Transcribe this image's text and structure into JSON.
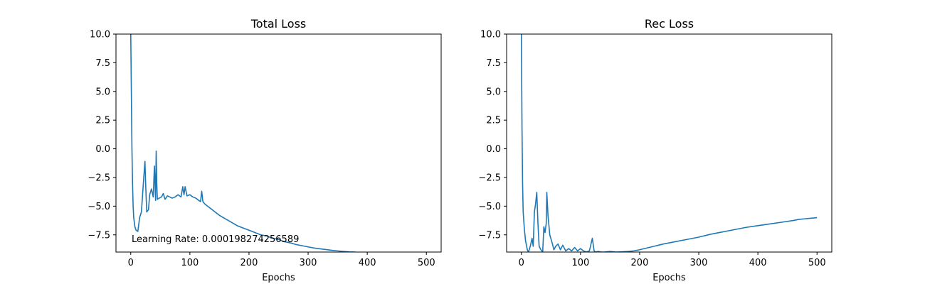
{
  "chart_data": [
    {
      "type": "line",
      "title": "Total Loss",
      "xlabel": "Epochs",
      "ylabel": "",
      "xlim": [
        -25,
        525
      ],
      "ylim": [
        -9.0,
        10.0
      ],
      "xticks": [
        0,
        100,
        200,
        300,
        400,
        500
      ],
      "xtick_labels": [
        "0",
        "100",
        "200",
        "300",
        "400",
        "500"
      ],
      "yticks": [
        -7.5,
        -5.0,
        -2.5,
        0.0,
        2.5,
        5.0,
        7.5,
        10.0
      ],
      "ytick_labels": [
        "−7.5",
        "−5.0",
        "−2.5",
        "0.0",
        "2.5",
        "5.0",
        "7.5",
        "10.0"
      ],
      "grid": false,
      "color": "#1f77b4",
      "annotation": "Learning Rate: 0.000198274256589",
      "series": [
        {
          "x": [
            0,
            1,
            2,
            3,
            4,
            5,
            7,
            9,
            12,
            15,
            18,
            20,
            22,
            24,
            25,
            27,
            30,
            32,
            35,
            38,
            40,
            42,
            43,
            44,
            45,
            48,
            52,
            55,
            58,
            62,
            66,
            70,
            75,
            80,
            85,
            88,
            90,
            92,
            95,
            100,
            105,
            110,
            115,
            118,
            120,
            122,
            125,
            130,
            140,
            150,
            160,
            170,
            180,
            190,
            200,
            210,
            220,
            230,
            240,
            250,
            260,
            270,
            280,
            290,
            300,
            310,
            320,
            330,
            340,
            350,
            360,
            370,
            380
          ],
          "y": [
            10.0,
            5.0,
            0.0,
            -3.0,
            -5.0,
            -6.0,
            -6.8,
            -7.1,
            -7.2,
            -6.0,
            -5.5,
            -4.0,
            -2.5,
            -1.1,
            -2.8,
            -5.5,
            -5.3,
            -4.0,
            -3.5,
            -4.2,
            -1.5,
            -4.5,
            -0.2,
            -3.0,
            -4.4,
            -4.3,
            -4.2,
            -3.9,
            -4.4,
            -4.1,
            -4.2,
            -4.3,
            -4.2,
            -4.0,
            -4.2,
            -3.3,
            -4.0,
            -3.3,
            -4.1,
            -4.0,
            -4.2,
            -4.3,
            -4.5,
            -4.6,
            -3.7,
            -4.6,
            -4.8,
            -5.0,
            -5.4,
            -5.8,
            -6.1,
            -6.4,
            -6.7,
            -6.9,
            -7.1,
            -7.3,
            -7.5,
            -7.6,
            -7.8,
            -7.9,
            -8.1,
            -8.2,
            -8.35,
            -8.45,
            -8.55,
            -8.65,
            -8.72,
            -8.78,
            -8.85,
            -8.9,
            -8.95,
            -8.99,
            -9.0
          ]
        }
      ]
    },
    {
      "type": "line",
      "title": "Rec Loss",
      "xlabel": "Epochs",
      "ylabel": "",
      "xlim": [
        -25,
        525
      ],
      "ylim": [
        -9.0,
        10.0
      ],
      "xticks": [
        0,
        100,
        200,
        300,
        400,
        500
      ],
      "xtick_labels": [
        "0",
        "100",
        "200",
        "300",
        "400",
        "500"
      ],
      "yticks": [
        -7.5,
        -5.0,
        -2.5,
        0.0,
        2.5,
        5.0,
        7.5,
        10.0
      ],
      "ytick_labels": [
        "−7.5",
        "−5.0",
        "−2.5",
        "0.0",
        "2.5",
        "5.0",
        "7.5",
        "10.0"
      ],
      "grid": false,
      "color": "#1f77b4",
      "series": [
        {
          "x": [
            0,
            1,
            2,
            3,
            5,
            7,
            10,
            12,
            15,
            18,
            20,
            22,
            24,
            26,
            28,
            30,
            33,
            36,
            38,
            40,
            42,
            43,
            45,
            48,
            52,
            55,
            58,
            62,
            66,
            70,
            75,
            80,
            85,
            90,
            95,
            100,
            105,
            110,
            115,
            120,
            123,
            126,
            130,
            135,
            140,
            150,
            160,
            170,
            180,
            190,
            200,
            220,
            240,
            260,
            280,
            300,
            320,
            340,
            360,
            380,
            400,
            420,
            440,
            460,
            470,
            480,
            490,
            500
          ],
          "y": [
            10.0,
            2.0,
            -3.0,
            -5.5,
            -7.0,
            -8.0,
            -8.8,
            -9.0,
            -8.5,
            -7.8,
            -8.5,
            -5.5,
            -4.8,
            -3.8,
            -6.5,
            -8.5,
            -8.8,
            -9.0,
            -6.8,
            -7.3,
            -6.5,
            -3.8,
            -5.8,
            -7.5,
            -8.2,
            -8.8,
            -8.5,
            -8.3,
            -8.8,
            -8.4,
            -8.9,
            -8.7,
            -8.9,
            -8.6,
            -8.9,
            -8.7,
            -8.9,
            -9.0,
            -8.9,
            -7.8,
            -8.9,
            -9.0,
            -8.95,
            -9.0,
            -9.0,
            -8.95,
            -9.0,
            -8.98,
            -8.95,
            -8.9,
            -8.8,
            -8.55,
            -8.3,
            -8.1,
            -7.9,
            -7.7,
            -7.45,
            -7.25,
            -7.05,
            -6.85,
            -6.7,
            -6.55,
            -6.4,
            -6.25,
            -6.15,
            -6.1,
            -6.05,
            -6.0
          ]
        }
      ]
    }
  ]
}
